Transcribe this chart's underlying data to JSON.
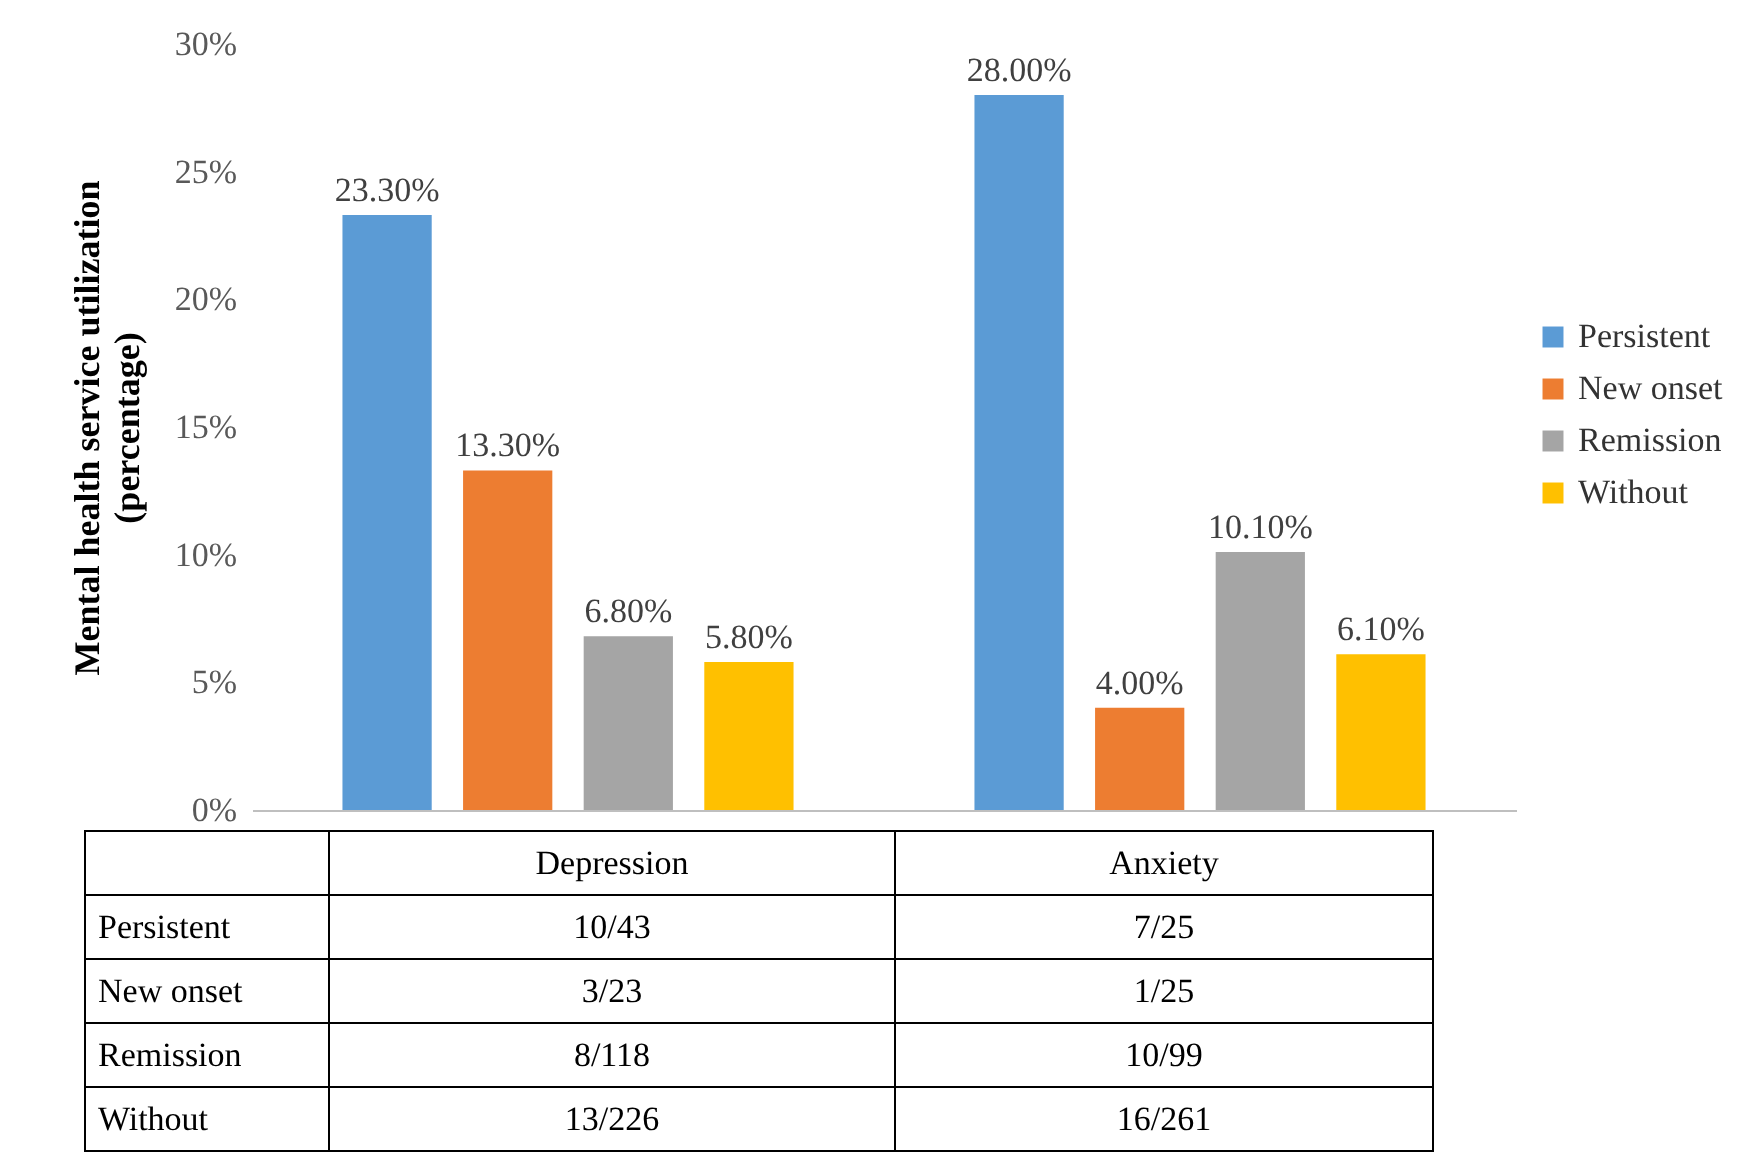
{
  "chart_data": {
    "type": "bar",
    "ylabel": "Mental health service utilization (percentage)",
    "categories": [
      "Depression",
      "Anxiety"
    ],
    "series": [
      {
        "name": "Persistent",
        "color": "#5b9bd5",
        "values": [
          23.3,
          28.0
        ],
        "value_labels": [
          "23.30%",
          "28.00%"
        ]
      },
      {
        "name": "New onset",
        "color": "#ed7d31",
        "values": [
          13.3,
          4.0
        ],
        "value_labels": [
          "13.30%",
          "4.00%"
        ]
      },
      {
        "name": "Remission",
        "color": "#a5a5a5",
        "values": [
          6.8,
          10.1
        ],
        "value_labels": [
          "6.80%",
          "10.10%"
        ]
      },
      {
        "name": "Without",
        "color": "#ffc000",
        "values": [
          5.8,
          6.1
        ],
        "value_labels": [
          "5.80%",
          "6.10%"
        ]
      }
    ],
    "ylim": [
      0,
      30
    ],
    "yticks": [
      {
        "value": 0,
        "label": "0%"
      },
      {
        "value": 5,
        "label": "5%"
      },
      {
        "value": 10,
        "label": "10%"
      },
      {
        "value": 15,
        "label": "15%"
      },
      {
        "value": 20,
        "label": "20%"
      },
      {
        "value": 25,
        "label": "25%"
      },
      {
        "value": 30,
        "label": "30%"
      }
    ],
    "legend": "right",
    "annotations": [
      "10/43",
      "7/25",
      "3/23",
      "1/25",
      "8/118",
      "10/99",
      "13/226",
      "16/261"
    ]
  }
}
